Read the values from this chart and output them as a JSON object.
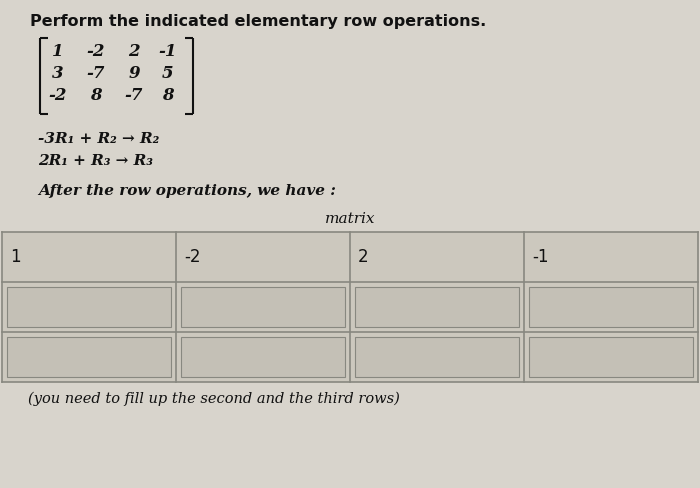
{
  "title": "Perform the indicated elementary row operations.",
  "matrix": [
    [
      "1",
      "-2",
      "2",
      "-1"
    ],
    [
      "3",
      "-7",
      "9",
      "5"
    ],
    [
      "-2",
      "8",
      "-7",
      "8"
    ]
  ],
  "ops_line1": "-3R₁ + R₂ → R₂",
  "ops_line2": "2R₁ + R₃ → R₃",
  "after_text": "After the row operations, we have :",
  "matrix_label": "matrix",
  "row1_values": [
    "1",
    "-2",
    "2",
    "-1"
  ],
  "footer": "(you need to fill up the second and the third rows)",
  "bg_color": "#d8d4cc",
  "cell_bg_row1": "#ccc8be",
  "cell_bg_empty_light": "#ccc8be",
  "cell_bg_empty_inner": "#c4c0b6",
  "grid_color": "#888880",
  "text_color": "#111111",
  "title_fontsize": 11.5,
  "body_fontsize": 11,
  "matrix_fontsize": 12,
  "table_fontsize": 12,
  "footer_fontsize": 10.5
}
